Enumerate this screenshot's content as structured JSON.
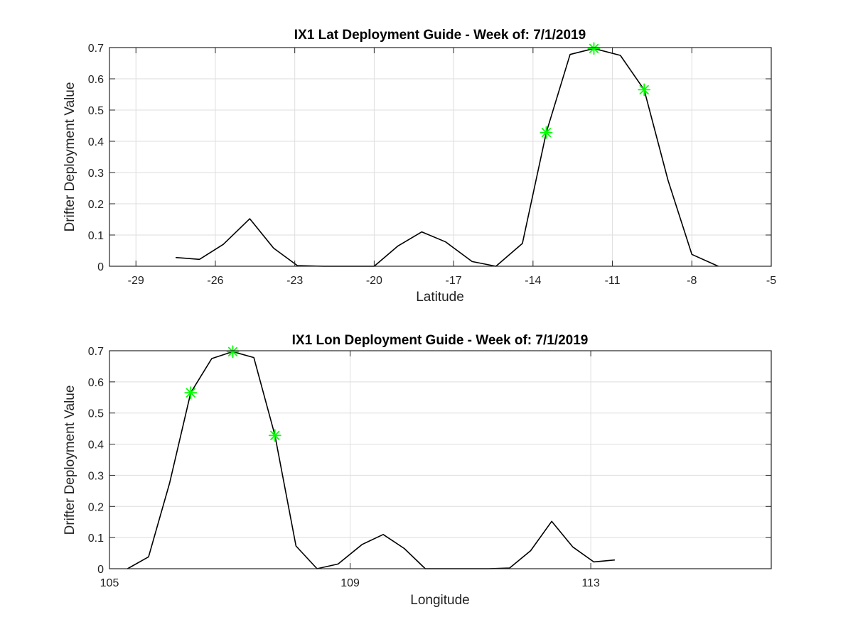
{
  "chart_data": [
    {
      "type": "line",
      "title": "IX1 Lat Deployment Guide - Week of: 7/1/2019",
      "xlabel": "Latitude",
      "ylabel": "Drifter Deployment Value",
      "xlim": [
        -30,
        -5
      ],
      "ylim": [
        0,
        0.7
      ],
      "xticks": [
        -29,
        -26,
        -23,
        -20,
        -17,
        -14,
        -11,
        -8,
        -5
      ],
      "yticks": [
        0,
        0.1,
        0.2,
        0.3,
        0.4,
        0.5,
        0.6,
        0.7
      ],
      "grid": true,
      "line_color": "#000000",
      "marker_color": "#00ff00",
      "x": [
        -27.5,
        -26.6,
        -25.7,
        -24.7,
        -23.8,
        -22.9,
        -21.9,
        -21.0,
        -20.0,
        -19.1,
        -18.2,
        -17.3,
        -16.3,
        -15.4,
        -14.4,
        -13.5,
        -12.6,
        -11.7,
        -10.7,
        -9.8,
        -8.9,
        -8.0,
        -7.0
      ],
      "y": [
        0.028,
        0.022,
        0.07,
        0.152,
        0.058,
        0.002,
        0.0,
        0.0,
        0.0,
        0.065,
        0.11,
        0.078,
        0.015,
        0.0,
        0.073,
        0.428,
        0.678,
        0.697,
        0.675,
        0.565,
        0.275,
        0.038,
        0.0
      ],
      "markers": [
        {
          "x": -13.5,
          "y": 0.428
        },
        {
          "x": -11.7,
          "y": 0.697
        },
        {
          "x": -9.8,
          "y": 0.565
        }
      ]
    },
    {
      "type": "line",
      "title": "IX1 Lon Deployment Guide - Week of: 7/1/2019",
      "xlabel": "Longitude",
      "ylabel": "Drifter Deployment Value",
      "xlim": [
        105,
        116
      ],
      "ylim": [
        0,
        0.7
      ],
      "xticks": [
        105,
        109,
        113
      ],
      "yticks": [
        0,
        0.1,
        0.2,
        0.3,
        0.4,
        0.5,
        0.6,
        0.7
      ],
      "grid": true,
      "line_color": "#000000",
      "marker_color": "#00ff00",
      "x": [
        105.3,
        105.65,
        106.0,
        106.35,
        106.7,
        107.05,
        107.4,
        107.75,
        108.1,
        108.45,
        108.8,
        109.2,
        109.55,
        109.9,
        110.25,
        110.6,
        110.95,
        111.3,
        111.65,
        112.0,
        112.35,
        112.7,
        113.05,
        113.4
      ],
      "y": [
        0.0,
        0.038,
        0.275,
        0.565,
        0.675,
        0.697,
        0.678,
        0.428,
        0.073,
        0.0,
        0.015,
        0.078,
        0.11,
        0.065,
        0.0,
        0.0,
        0.0,
        0.0,
        0.002,
        0.058,
        0.152,
        0.07,
        0.022,
        0.028
      ],
      "markers": [
        {
          "x": 106.35,
          "y": 0.565
        },
        {
          "x": 107.05,
          "y": 0.697
        },
        {
          "x": 107.75,
          "y": 0.428
        }
      ]
    }
  ]
}
